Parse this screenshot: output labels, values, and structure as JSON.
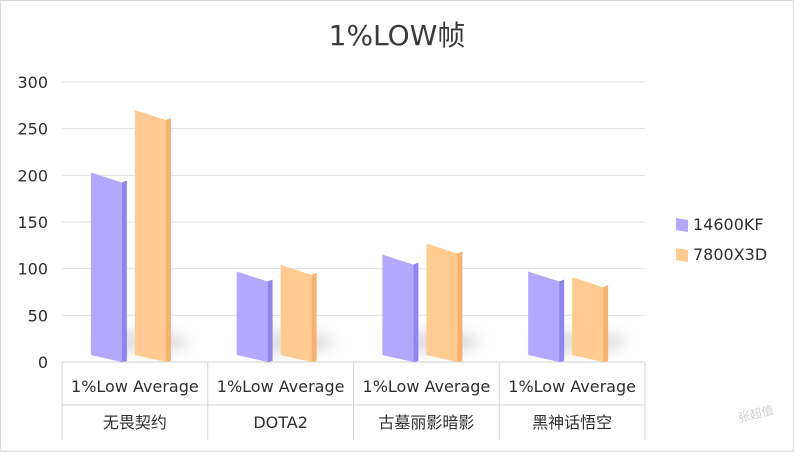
{
  "chart_data": {
    "type": "bar",
    "title": "1%LOW帧",
    "xlabel": "",
    "ylabel": "",
    "ylim": [
      0,
      300
    ],
    "yticks": [
      0,
      50,
      100,
      150,
      200,
      250,
      300
    ],
    "grid": true,
    "legend_position": "right",
    "categories": [
      {
        "metric": "1%Low Average",
        "game": "无畏契约"
      },
      {
        "metric": "1%Low Average",
        "game": "DOTA2"
      },
      {
        "metric": "1%Low Average",
        "game": "古墓丽影暗影"
      },
      {
        "metric": "1%Low Average",
        "game": "黑神话悟空"
      }
    ],
    "series": [
      {
        "name": "14600KF",
        "color": "#b3a7ff",
        "side_color": "#9283f2",
        "values": [
          203,
          97,
          115,
          97
        ]
      },
      {
        "name": "7800X3D",
        "color": "#ffcb91",
        "side_color": "#f7b26c",
        "values": [
          270,
          104,
          127,
          91
        ]
      }
    ]
  },
  "watermark": "张超值"
}
